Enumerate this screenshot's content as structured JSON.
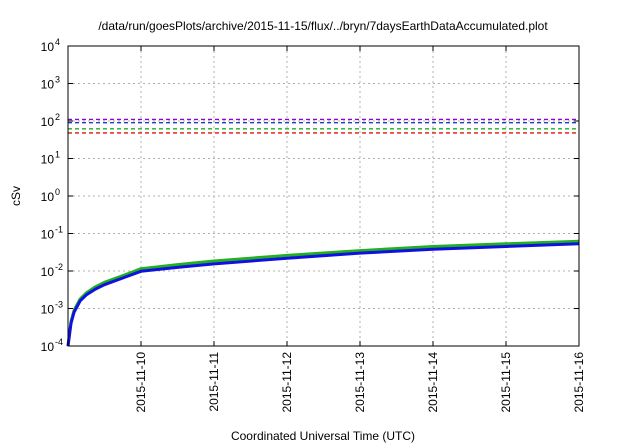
{
  "chart_data": {
    "type": "line",
    "title": "/data/run/goesPlots/archive/2015-11-15/flux/../bryn/7daysEarthDataAccumulated.plot",
    "xlabel": "Coordinated Universal Time (UTC)",
    "ylabel": "cSv",
    "xlim": [
      "2015-11-09T00:00",
      "2015-11-16T00:00"
    ],
    "ylim": [
      0.0001,
      10000
    ],
    "yscale": "log",
    "grid": true,
    "x_ticks": [
      "2015-11-10",
      "2015-11-11",
      "2015-11-12",
      "2015-11-13",
      "2015-11-14",
      "2015-11-15",
      "2015-11-16"
    ],
    "y_ticks": [
      {
        "value": 0.0001,
        "base": "10",
        "exp": "-4"
      },
      {
        "value": 0.001,
        "base": "10",
        "exp": "-3"
      },
      {
        "value": 0.01,
        "base": "10",
        "exp": "-2"
      },
      {
        "value": 0.1,
        "base": "10",
        "exp": "-1"
      },
      {
        "value": 1,
        "base": "10",
        "exp": "0"
      },
      {
        "value": 10,
        "base": "10",
        "exp": "1"
      },
      {
        "value": 100,
        "base": "10",
        "exp": "2"
      },
      {
        "value": 1000,
        "base": "10",
        "exp": "3"
      },
      {
        "value": 10000,
        "base": "10",
        "exp": "4"
      }
    ],
    "thresholds": [
      {
        "value": 110,
        "color": "#9400d3"
      },
      {
        "value": 90,
        "color": "#1f3fbf"
      },
      {
        "value": 62,
        "color": "#22b022"
      },
      {
        "value": 48,
        "color": "#e01010"
      }
    ],
    "series": [
      {
        "color": "#22b022",
        "x": [
          "2015-11-09T00:00",
          "2015-11-09T01:00",
          "2015-11-09T02:00",
          "2015-11-09T04:00",
          "2015-11-09T06:00",
          "2015-11-09T09:00",
          "2015-11-09T12:00",
          "2015-11-09T18:00",
          "2015-11-10T00:00",
          "2015-11-10T12:00",
          "2015-11-11T00:00",
          "2015-11-12T00:00",
          "2015-11-13T00:00",
          "2015-11-14T00:00",
          "2015-11-15T00:00",
          "2015-11-16T00:00"
        ],
        "y": [
          0.0001,
          0.00045,
          0.0009,
          0.0018,
          0.0026,
          0.0038,
          0.005,
          0.0075,
          0.0115,
          0.0148,
          0.0185,
          0.026,
          0.035,
          0.045,
          0.053,
          0.062
        ]
      },
      {
        "color": "#1010e0",
        "x": [
          "2015-11-09T00:00",
          "2015-11-09T01:00",
          "2015-11-09T02:00",
          "2015-11-09T04:00",
          "2015-11-09T06:00",
          "2015-11-09T09:00",
          "2015-11-09T12:00",
          "2015-11-09T18:00",
          "2015-11-10T00:00",
          "2015-11-10T12:00",
          "2015-11-11T00:00",
          "2015-11-12T00:00",
          "2015-11-13T00:00",
          "2015-11-14T00:00",
          "2015-11-15T00:00",
          "2015-11-16T00:00"
        ],
        "y": [
          0.0001,
          0.0004,
          0.0008,
          0.0016,
          0.0023,
          0.0033,
          0.0043,
          0.0065,
          0.0098,
          0.0125,
          0.0155,
          0.022,
          0.03,
          0.038,
          0.045,
          0.053
        ]
      }
    ]
  }
}
